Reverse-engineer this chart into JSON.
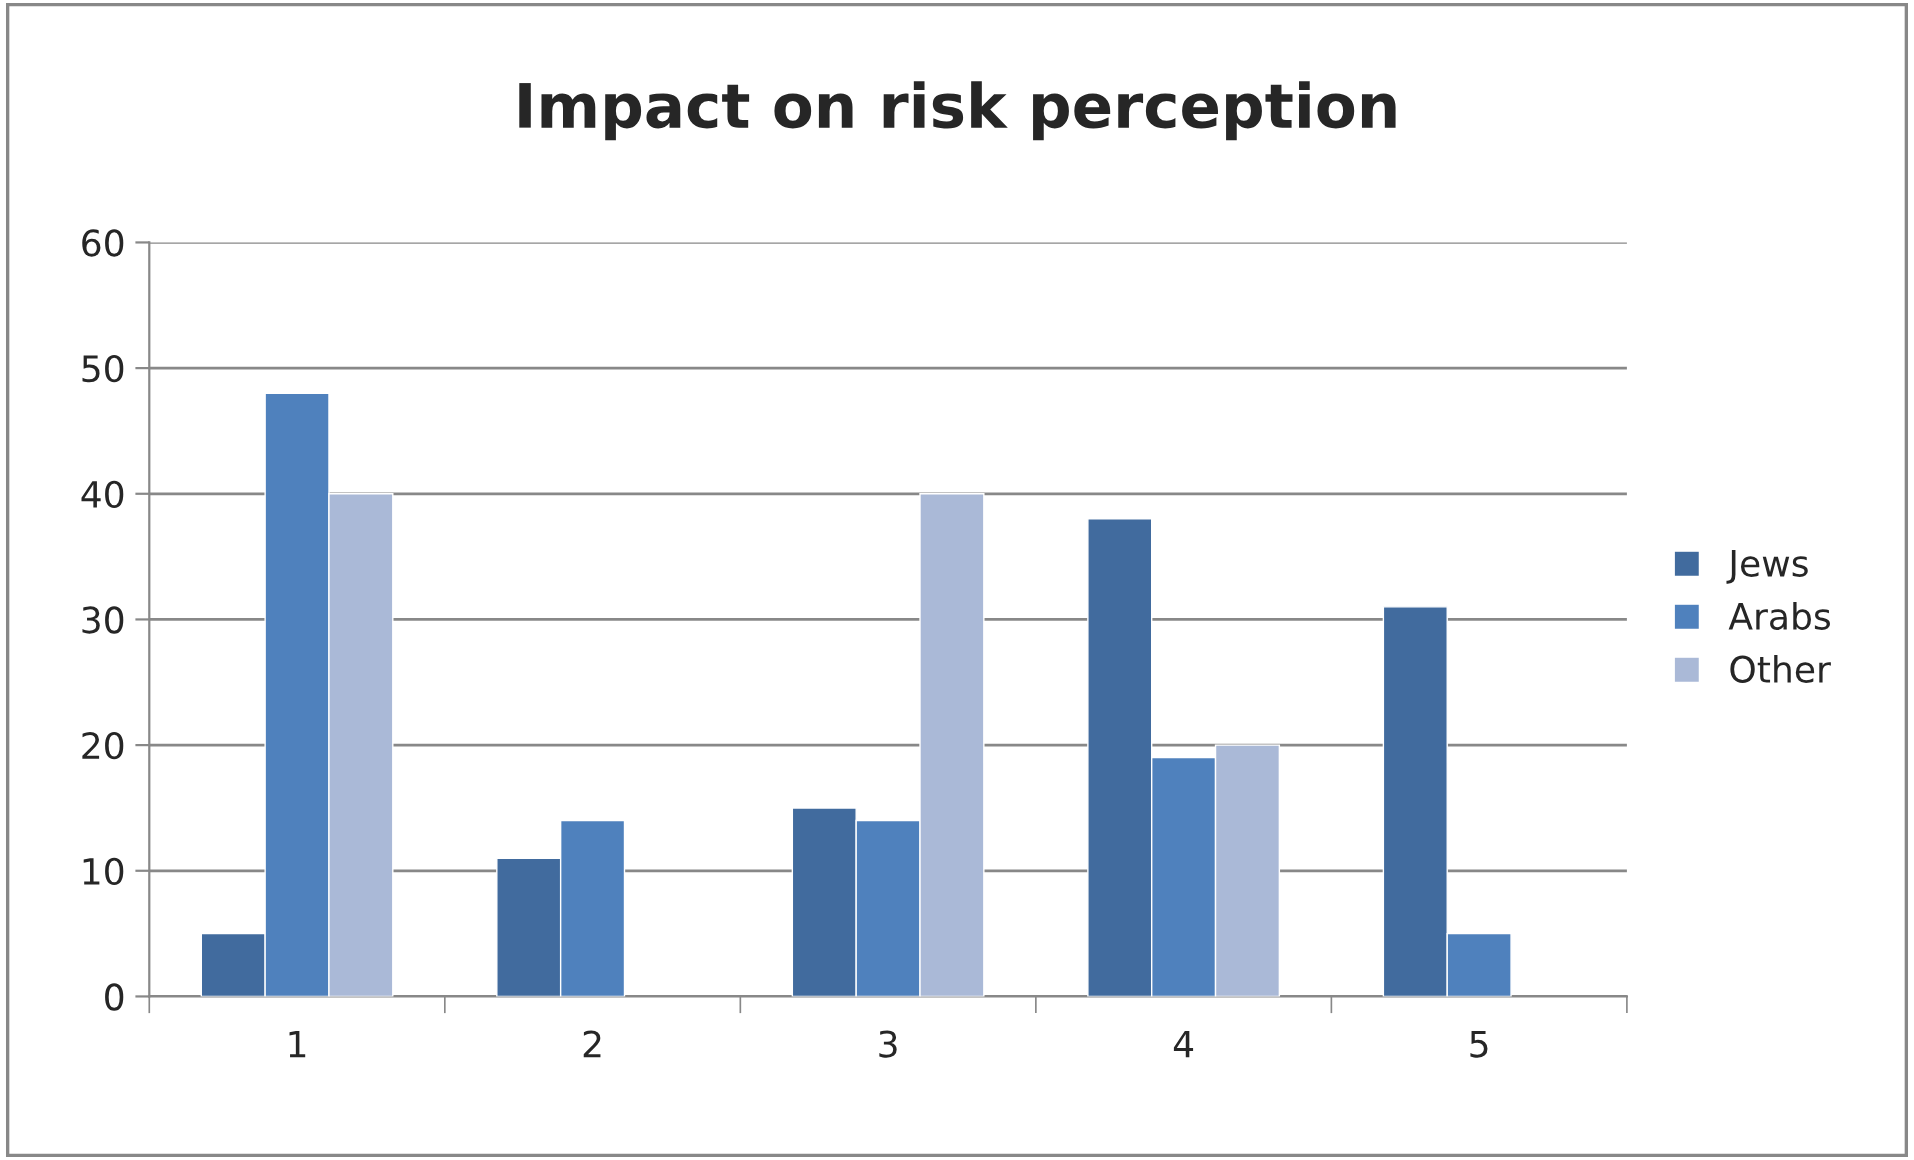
{
  "chart_data": {
    "type": "bar",
    "title": "Impact on risk perception",
    "categories": [
      "1",
      "2",
      "3",
      "4",
      "5"
    ],
    "series": [
      {
        "name": "Jews",
        "color": "#416b9e",
        "values": [
          5,
          11,
          15,
          38,
          31
        ]
      },
      {
        "name": "Arabs",
        "color": "#4f81bd",
        "values": [
          48,
          14,
          14,
          19,
          5
        ]
      },
      {
        "name": "Other",
        "color": "#aab9d7",
        "values": [
          40,
          null,
          40,
          20,
          null
        ]
      }
    ],
    "ylim": [
      0,
      60
    ],
    "yticks": [
      0,
      10,
      20,
      30,
      40,
      50,
      60
    ],
    "grid": "y",
    "legend": "right"
  }
}
